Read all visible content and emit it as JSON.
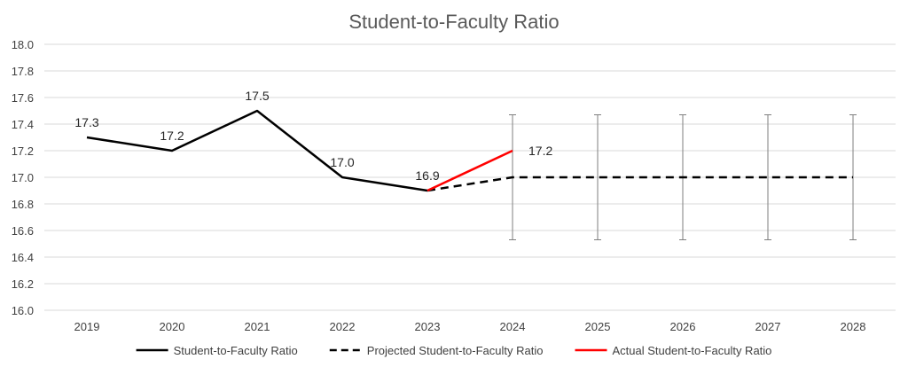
{
  "chart_data": {
    "type": "line",
    "title": "Student-to-Faculty Ratio",
    "xlabel": "",
    "ylabel": "",
    "categories": [
      "2019",
      "2020",
      "2021",
      "2022",
      "2023",
      "2024",
      "2025",
      "2026",
      "2027",
      "2028"
    ],
    "ylim": [
      16.0,
      18.0
    ],
    "y_ticks": [
      "16.0",
      "16.2",
      "16.4",
      "16.6",
      "16.8",
      "17.0",
      "17.2",
      "17.4",
      "17.6",
      "17.8",
      "18.0"
    ],
    "grid": true,
    "legend_position": "bottom",
    "series": [
      {
        "name": "Student-to-Faculty Ratio",
        "style": "solid",
        "color": "#000000",
        "values": [
          17.3,
          17.2,
          17.5,
          17.0,
          16.9,
          null,
          null,
          null,
          null,
          null
        ],
        "labels": [
          "17.3",
          "17.2",
          "17.5",
          "17.0",
          "16.9",
          null,
          null,
          null,
          null,
          null
        ]
      },
      {
        "name": "Projected Student-to-Faculty Ratio",
        "style": "dashed",
        "color": "#000000",
        "values": [
          null,
          null,
          null,
          null,
          16.9,
          17.0,
          17.0,
          17.0,
          17.0,
          17.0
        ],
        "error_high": [
          null,
          null,
          null,
          null,
          null,
          17.47,
          17.47,
          17.47,
          17.47,
          17.47
        ],
        "error_low": [
          null,
          null,
          null,
          null,
          null,
          16.53,
          16.53,
          16.53,
          16.53,
          16.53
        ]
      },
      {
        "name": "Actual Student-to-Faculty Ratio",
        "style": "solid",
        "color": "#ff0000",
        "values": [
          null,
          null,
          null,
          null,
          16.9,
          17.2,
          null,
          null,
          null,
          null
        ],
        "labels": [
          null,
          null,
          null,
          null,
          null,
          "17.2",
          null,
          null,
          null,
          null
        ]
      }
    ]
  }
}
